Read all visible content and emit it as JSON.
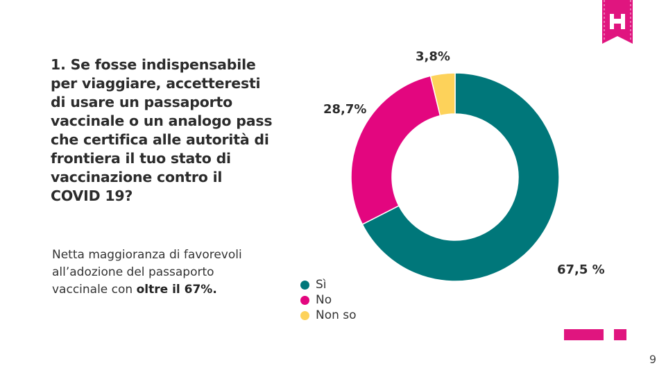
{
  "question": "1. Se fosse indispensabile per viaggiare, accetteresti di usare un passaporto vaccinale o un analogo pass che certifica alle autorità di frontiera il tuo stato di vaccinazione contro il COVID 19?",
  "summary": {
    "text_plain": "Netta maggioranza di favorevoli all’adozione del passaporto vaccinale con ",
    "text_bold": "oltre il 67%."
  },
  "page_number": "9",
  "logo_icon": "brand-logo-icon",
  "colors": {
    "si": "#00777a",
    "no": "#e3067f",
    "non_so": "#fdd25a",
    "brand": "#e0157f"
  },
  "chart_data": {
    "type": "pie",
    "donut": true,
    "categories": [
      "Sì",
      "No",
      "Non so"
    ],
    "values": [
      67.5,
      28.7,
      3.8
    ],
    "data_labels": [
      "67,5 %",
      "28,7%",
      "3,8%"
    ],
    "title": "",
    "legend_position": "bottom-left"
  }
}
